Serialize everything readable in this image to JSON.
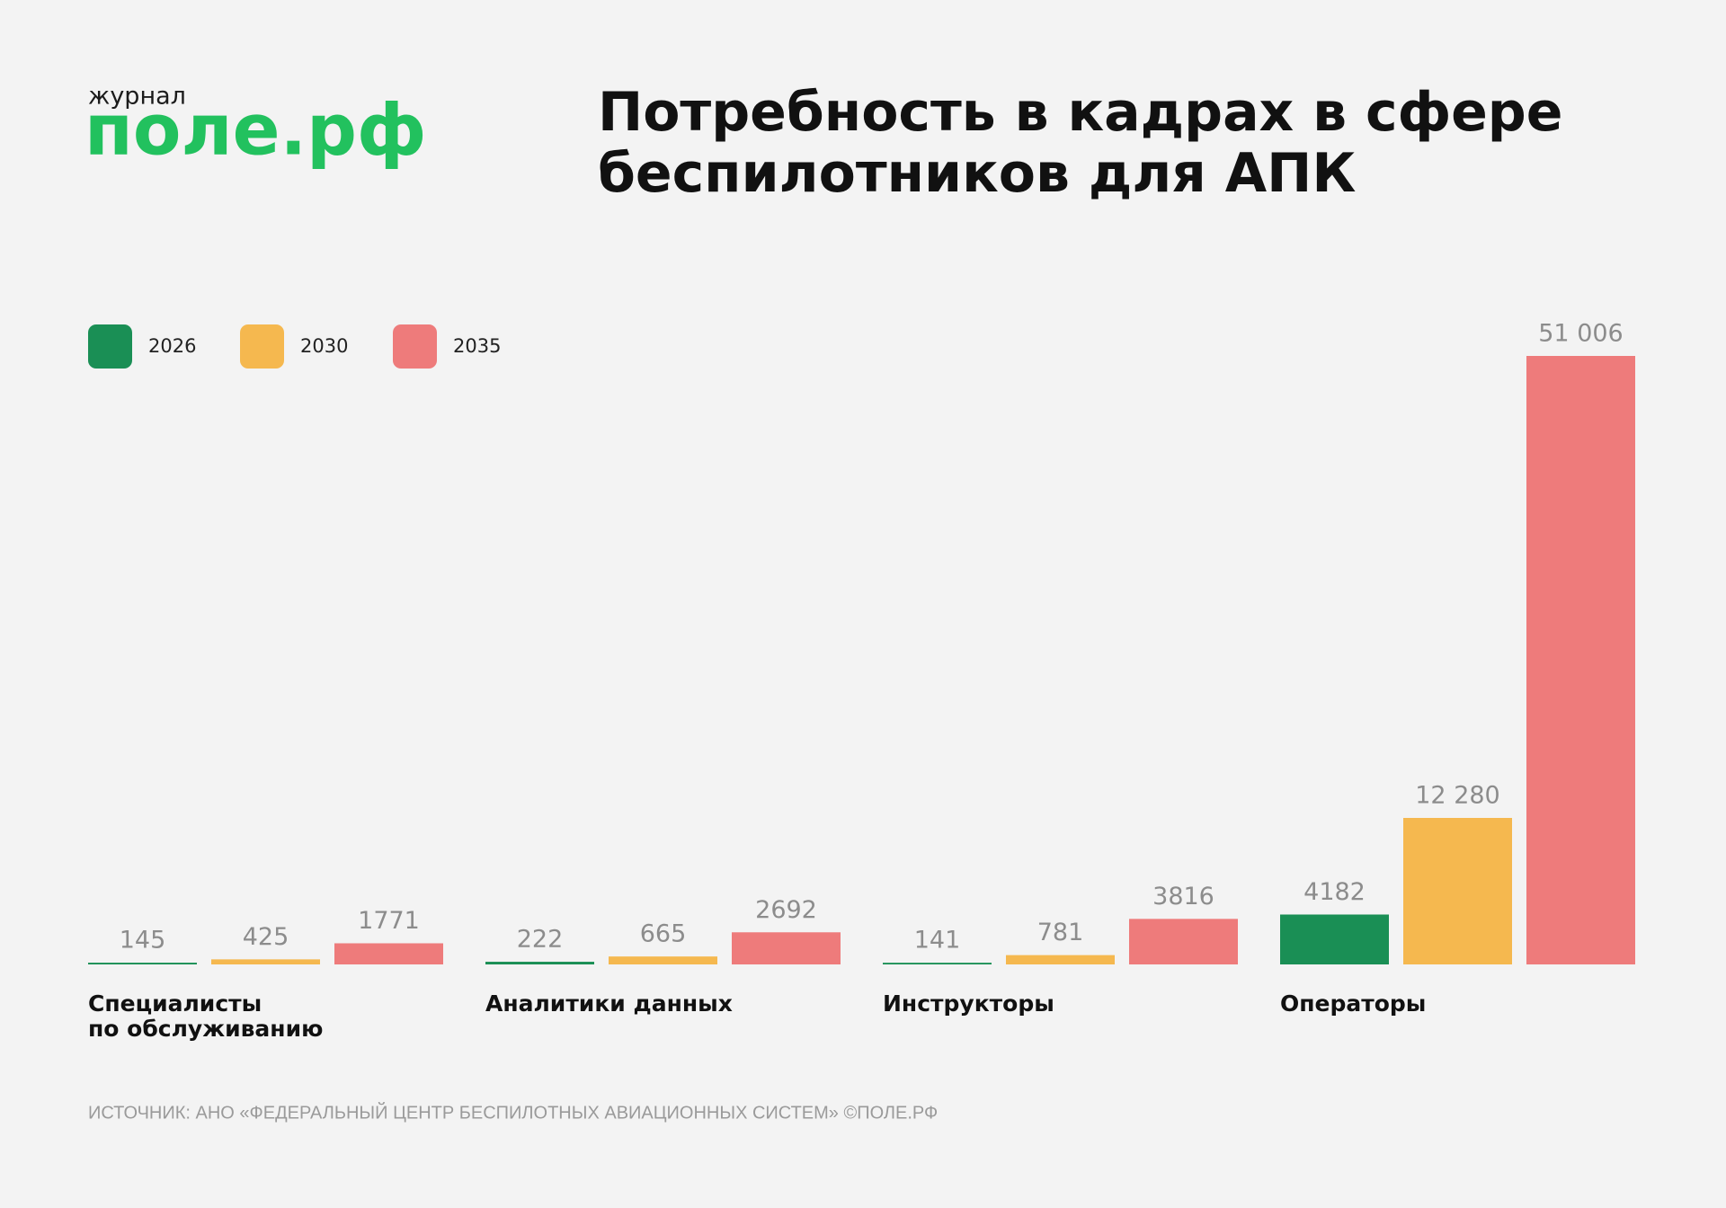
{
  "chart_data": {
    "type": "bar",
    "logo": {
      "small": "журнал",
      "big": "поле.рф"
    },
    "title": "Потребность в кадрах в сфере\nбеспилотников для АПК",
    "categories": [
      "Специалисты\nпо обслуживанию",
      "Аналитики данных",
      "Инструкторы",
      "Операторы"
    ],
    "series": [
      {
        "name": "2026",
        "color": "#1a8f55",
        "values": [
          145,
          222,
          141,
          4182
        ],
        "value_labels": [
          "145",
          "222",
          "141",
          "4182"
        ]
      },
      {
        "name": "2030",
        "color": "#f5b84f",
        "values": [
          425,
          665,
          781,
          12280
        ],
        "value_labels": [
          "425",
          "665",
          "781",
          "12 280"
        ]
      },
      {
        "name": "2035",
        "color": "#ee7b7b",
        "values": [
          1771,
          2692,
          3816,
          51006
        ],
        "value_labels": [
          "1771",
          "2692",
          "3816",
          "51 006"
        ]
      }
    ],
    "legend": "top-left",
    "source": "ИСТОЧНИК: АНО «ФЕДЕРАЛЬНЫЙ ЦЕНТР БЕСПИЛОТНЫХ АВИАЦИОННЫХ СИСТЕМ» ©ПОЛЕ.РФ"
  }
}
